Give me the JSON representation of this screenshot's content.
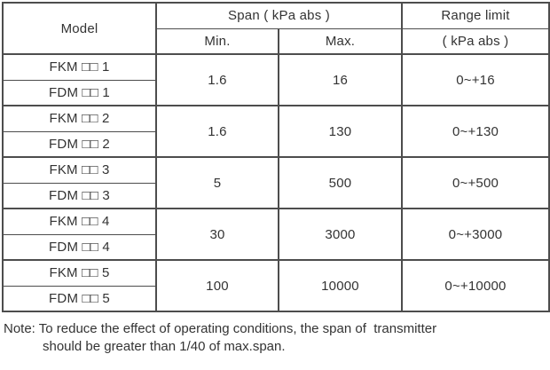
{
  "table": {
    "headers": {
      "model": "Model",
      "span_group": "Span ( kPa abs )",
      "min": "Min.",
      "max": "Max.",
      "range_limit": "Range limit",
      "range_limit_unit": "( kPa abs )"
    },
    "groups": [
      {
        "models": [
          "FKM □□ 1",
          "FDM □□ 1"
        ],
        "min": "1.6",
        "max": "16",
        "range": "0~+16"
      },
      {
        "models": [
          "FKM □□ 2",
          "FDM □□ 2"
        ],
        "min": "1.6",
        "max": "130",
        "range": "0~+130"
      },
      {
        "models": [
          "FKM □□ 3",
          "FDM □□ 3"
        ],
        "min": "5",
        "max": "500",
        "range": "0~+500"
      },
      {
        "models": [
          "FKM □□ 4",
          "FDM □□ 4"
        ],
        "min": "30",
        "max": "3000",
        "range": "0~+3000"
      },
      {
        "models": [
          "FKM □□ 5",
          "FDM □□ 5"
        ],
        "min": "100",
        "max": "10000",
        "range": "0~+10000"
      }
    ]
  },
  "note": {
    "line1": "Note: To reduce the effect of operating conditions, the span of  transmitter",
    "line2": "should be greater than 1/40 of max.span."
  },
  "colors": {
    "text": "#333333",
    "border": "#4d4d4d",
    "background": "#ffffff"
  }
}
